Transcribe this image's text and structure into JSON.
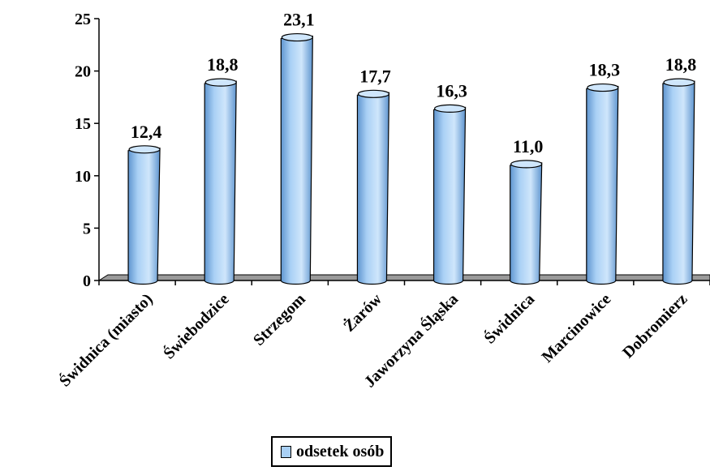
{
  "chart_data": {
    "type": "bar",
    "categories": [
      "Świdnica (miasto)",
      "Świebodzice",
      "Strzegom",
      "Żarów",
      "Jaworzyna Śląska",
      "Świdnica",
      "Marcinowice",
      "Dobromierz"
    ],
    "series": [
      {
        "name": "odsetek osób",
        "values": [
          12.4,
          18.8,
          23.1,
          17.7,
          16.3,
          11.0,
          18.3,
          18.8
        ],
        "data_labels": [
          "12,4",
          "18,8",
          "23,1",
          "17,7",
          "16,3",
          "11,0",
          "18,3",
          "18,8"
        ]
      }
    ],
    "yticks": [
      "0",
      "5",
      "10",
      "15",
      "20",
      "25"
    ],
    "ylim": [
      0,
      25
    ],
    "grid": false,
    "legend_position": "bottom",
    "colors": {
      "bar": "#a9d0f5",
      "bar_dark": "#5f95cf",
      "bar_top": "#cfe6fb",
      "floor": "#9a9a9a"
    }
  },
  "legend": {
    "label": "odsetek osób"
  }
}
